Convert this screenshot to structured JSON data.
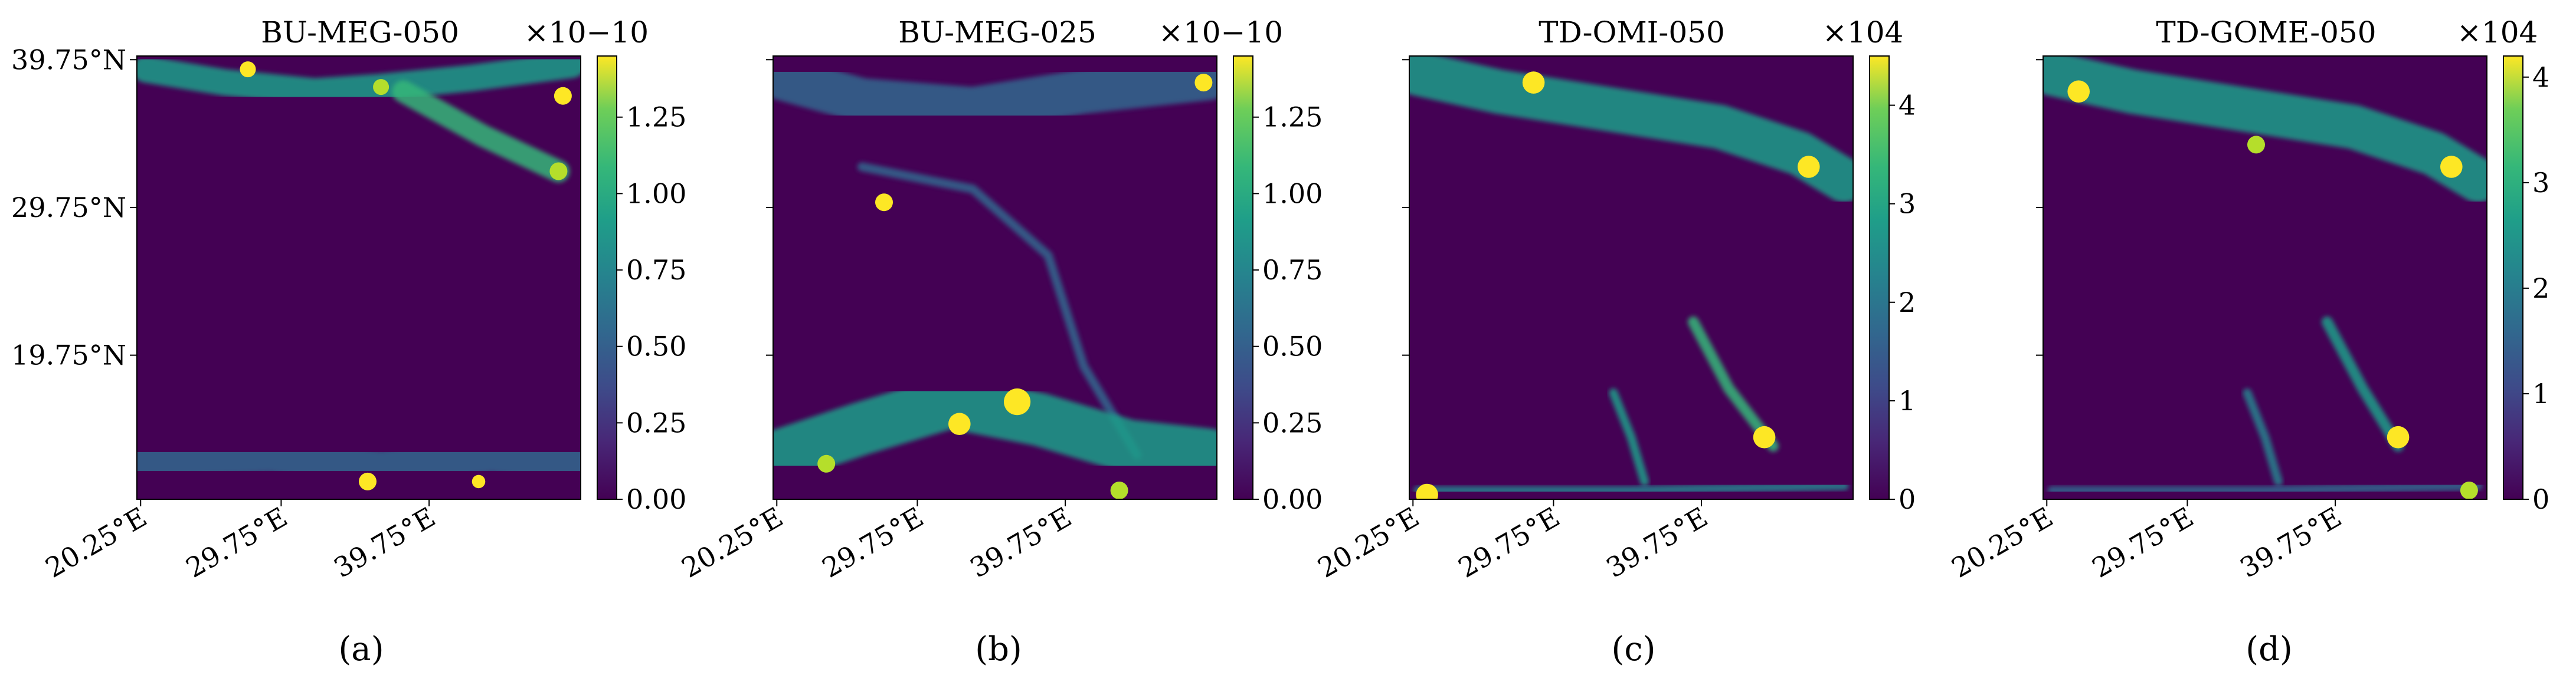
{
  "figure": {
    "colormap": "viridis",
    "colors": {
      "low": "#440154",
      "high": "#fde725",
      "frame": "#000000"
    }
  },
  "chart_data": [
    {
      "type": "heatmap",
      "panel_label": "(a)",
      "title": "BU-MEG-050",
      "colorbar": {
        "multiplier": "×10−10",
        "ticks": [
          "0.00",
          "0.25",
          "0.50",
          "0.75",
          "1.00",
          "1.25"
        ],
        "tick_values": [
          0,
          0.25,
          0.5,
          0.75,
          1.0,
          1.25
        ],
        "max": 1.45
      },
      "x_ticks": [
        "20.25°E",
        "29.75°E",
        "39.75°E"
      ],
      "x_tick_values": [
        20.25,
        29.75,
        39.75
      ],
      "y_ticks": [
        "39.75°N",
        "29.75°N",
        "19.75°N"
      ],
      "y_tick_values": [
        39.75,
        29.75,
        19.75
      ],
      "xlim": [
        20.0,
        50.0
      ],
      "ylim": [
        10.0,
        40.0
      ],
      "grid_resolution_deg": 0.5
    },
    {
      "type": "heatmap",
      "panel_label": "(b)",
      "title": "BU-MEG-025",
      "colorbar": {
        "multiplier": "×10−10",
        "ticks": [
          "0.00",
          "0.25",
          "0.50",
          "0.75",
          "1.00",
          "1.25"
        ],
        "tick_values": [
          0,
          0.25,
          0.5,
          0.75,
          1.0,
          1.25
        ],
        "max": 1.45
      },
      "x_ticks": [
        "20.25°E",
        "29.75°E",
        "39.75°E"
      ],
      "x_tick_values": [
        20.25,
        29.75,
        39.75
      ],
      "y_ticks": [
        "",
        "",
        ""
      ],
      "y_tick_values": [
        39.75,
        29.75,
        19.75
      ],
      "xlim": [
        20.0,
        50.0
      ],
      "ylim": [
        10.0,
        40.0
      ],
      "grid_resolution_deg": 0.25
    },
    {
      "type": "heatmap",
      "panel_label": "(c)",
      "title": "TD-OMI-050",
      "colorbar": {
        "multiplier": "×104",
        "ticks": [
          "0",
          "1",
          "2",
          "3",
          "4"
        ],
        "tick_values": [
          0,
          1,
          2,
          3,
          4
        ],
        "max": 4.5
      },
      "x_ticks": [
        "20.25°E",
        "29.75°E",
        "39.75°E"
      ],
      "x_tick_values": [
        20.25,
        29.75,
        39.75
      ],
      "y_ticks": [
        "",
        "",
        ""
      ],
      "y_tick_values": [
        39.75,
        29.75,
        19.75
      ],
      "xlim": [
        20.0,
        50.0
      ],
      "ylim": [
        10.0,
        40.0
      ],
      "grid_resolution_deg": 0.5
    },
    {
      "type": "heatmap",
      "panel_label": "(d)",
      "title": "TD-GOME-050",
      "colorbar": {
        "multiplier": "×104",
        "ticks": [
          "0",
          "1",
          "2",
          "3",
          "4"
        ],
        "tick_values": [
          0,
          1,
          2,
          3,
          4
        ],
        "max": 4.2
      },
      "x_ticks": [
        "20.25°E",
        "29.75°E",
        "39.75°E"
      ],
      "x_tick_values": [
        20.25,
        29.75,
        39.75
      ],
      "y_ticks": [
        "",
        "",
        ""
      ],
      "y_tick_values": [
        39.75,
        29.75,
        19.75
      ],
      "xlim": [
        20.0,
        50.0
      ],
      "ylim": [
        10.0,
        40.0
      ],
      "grid_resolution_deg": 0.5
    }
  ]
}
